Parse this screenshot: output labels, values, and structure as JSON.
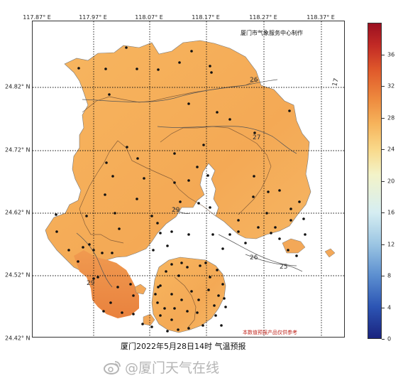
{
  "map": {
    "title": "厦门2022年5月28日14时  气温预报",
    "producer": "厦门市气象服务中心制作",
    "disclaimer": "本数值预报产品仅供参考",
    "lon_labels": [
      "117.87° E",
      "117.97° E",
      "118.07° E",
      "118.17° E",
      "118.27° E",
      "118.37° E"
    ],
    "lat_labels": [
      "24.82° N",
      "24.72° N",
      "24.62° N",
      "24.52° N",
      "24.42° N"
    ],
    "contour_labels": [
      "26",
      "27",
      "29",
      "29",
      "26",
      "25",
      "17"
    ],
    "land_fill_color": "#f6b15c",
    "warm_fill_color": "#ec8d46",
    "station_color": "#111111",
    "station_count": 118
  },
  "colorbar": {
    "ticks": [
      "0",
      "4",
      "8",
      "12",
      "16",
      "20",
      "24",
      "28",
      "32",
      "36"
    ],
    "range": [
      0,
      40
    ],
    "colormap": "blue-white-red"
  },
  "watermark": {
    "text": "@厦门天气在线",
    "icon": "weibo-icon"
  }
}
